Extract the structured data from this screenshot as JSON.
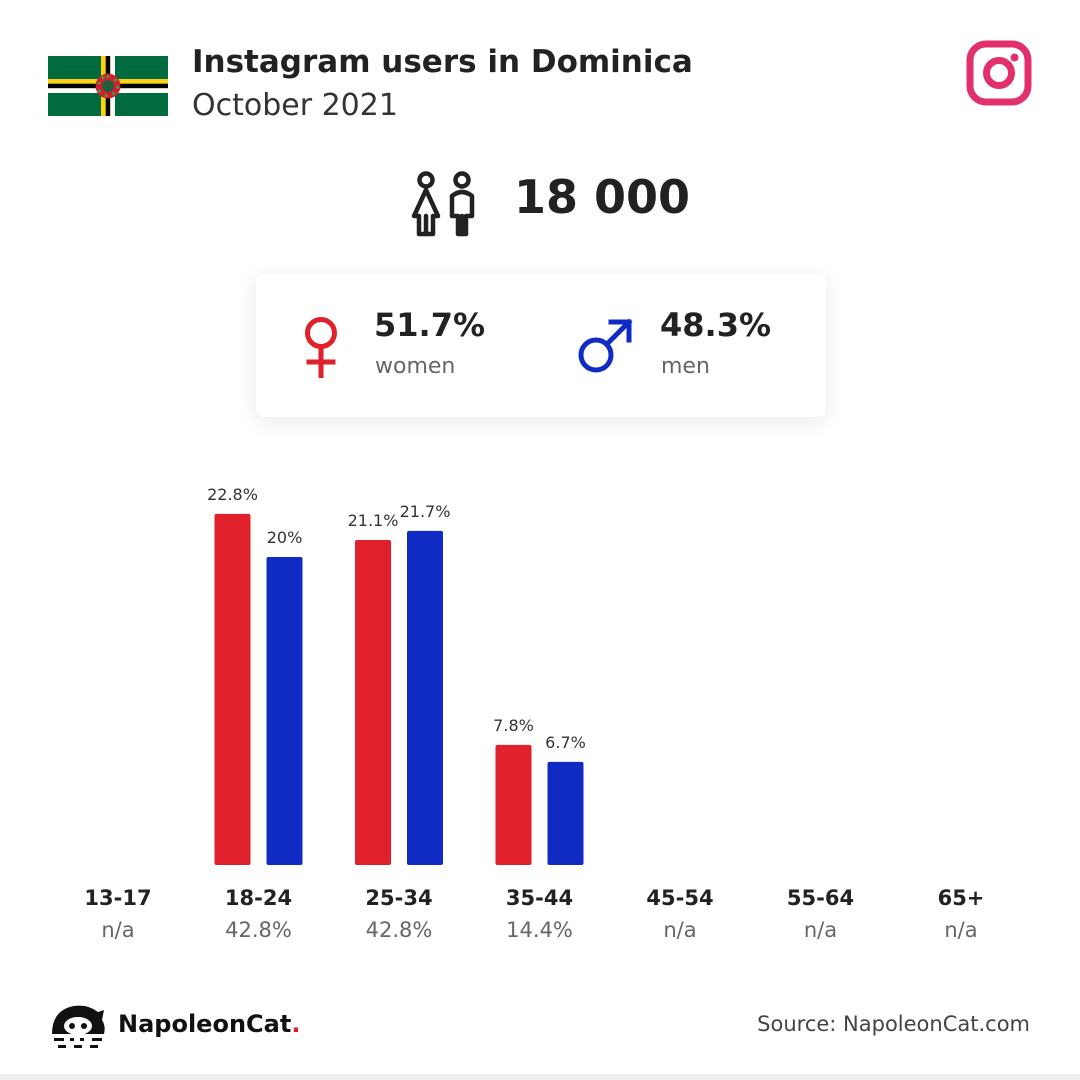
{
  "header": {
    "title": "Instagram users in Dominica",
    "subtitle": "October 2021",
    "flag_icon": "dominica-flag-icon",
    "platform_icon": "instagram-icon"
  },
  "total": {
    "icon": "users-icon",
    "value": "18 000"
  },
  "gender": {
    "women": {
      "percent": "51.7%",
      "label": "women",
      "icon": "female-symbol-icon"
    },
    "men": {
      "percent": "48.3%",
      "label": "men",
      "icon": "male-symbol-icon"
    }
  },
  "chart_data": {
    "type": "bar",
    "categories": [
      "13-17",
      "18-24",
      "25-34",
      "35-44",
      "45-54",
      "55-64",
      "65+"
    ],
    "category_totals": [
      "n/a",
      "42.8%",
      "42.8%",
      "14.4%",
      "n/a",
      "n/a",
      "n/a"
    ],
    "series": [
      {
        "name": "women",
        "color": "#e0202a",
        "values": [
          null,
          22.8,
          21.1,
          7.8,
          null,
          null,
          null
        ],
        "labels": [
          "",
          "22.8%",
          "21.1%",
          "7.8%",
          "",
          "",
          ""
        ]
      },
      {
        "name": "men",
        "color": "#0f2bc4",
        "values": [
          null,
          20,
          21.7,
          6.7,
          null,
          null,
          null
        ],
        "labels": [
          "",
          "20%",
          "21.7%",
          "6.7%",
          "",
          "",
          ""
        ]
      }
    ],
    "title": "",
    "xlabel": "",
    "ylabel": "",
    "grid": false,
    "legend": "none"
  },
  "footer": {
    "brand_name": "NapoleonCat",
    "brand_dot": ".",
    "source": "Source: NapoleonCat.com",
    "logo_icon": "napoleoncat-logo-icon"
  },
  "colors": {
    "women": "#e0202a",
    "men": "#0f2bc4",
    "instagram": "#e1306c"
  }
}
